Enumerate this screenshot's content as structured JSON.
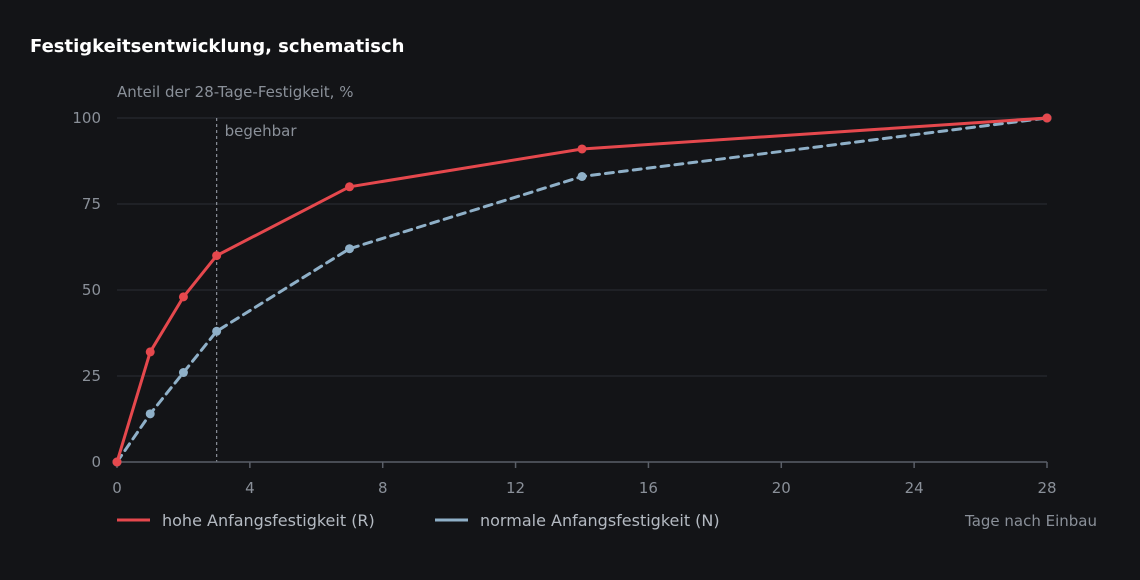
{
  "chart_data": {
    "type": "line",
    "title": "Festigkeitsentwicklung, schematisch",
    "ylabel": "Anteil der 28-Tage-Festigkeit, %",
    "xlabel": "Tage nach Einbau",
    "xlim": [
      0,
      28
    ],
    "ylim": [
      0,
      100
    ],
    "xticks": [
      0,
      4,
      8,
      12,
      16,
      20,
      24,
      28
    ],
    "yticks": [
      0,
      25,
      50,
      75,
      100
    ],
    "grid": "horizontal",
    "legend_position": "bottom-left",
    "annotation": {
      "x": 3,
      "label": "begehbar"
    },
    "series": [
      {
        "name": "hohe Anfangsfestigkeit (R)",
        "color": "#e5484d",
        "style": "solid",
        "x": [
          0,
          1,
          2,
          3,
          7,
          14,
          28
        ],
        "y": [
          0,
          32,
          48,
          60,
          80,
          91,
          100
        ]
      },
      {
        "name": "normale Anfangsfestigkeit (N)",
        "color": "#8fb0c8",
        "style": "dashed",
        "x": [
          0,
          1,
          2,
          3,
          7,
          14,
          28
        ],
        "y": [
          0,
          14,
          26,
          38,
          62,
          83,
          100
        ]
      }
    ]
  }
}
